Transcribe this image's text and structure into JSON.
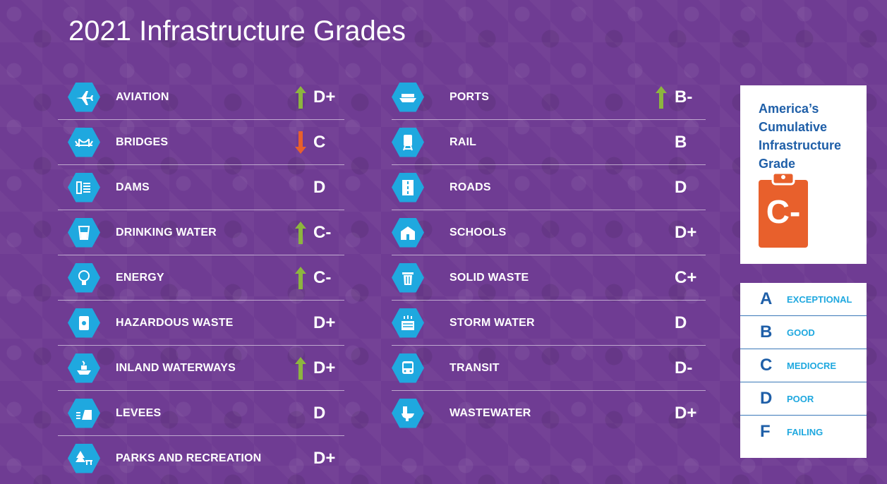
{
  "title": "2021 Infrastructure Grades",
  "colors": {
    "background": "#6f3c93",
    "hex_icon": "#1fa8df",
    "arrow_up": "#8db53f",
    "arrow_down": "#e8602c",
    "clipboard": "#e8602c",
    "heading_blue": "#1f5fa8"
  },
  "left_categories": [
    {
      "label": "AVIATION",
      "grade": "D+",
      "trend": "up",
      "icon": "airplane-icon"
    },
    {
      "label": "BRIDGES",
      "grade": "C",
      "trend": "down",
      "icon": "bridge-icon"
    },
    {
      "label": "DAMS",
      "grade": "D",
      "trend": "none",
      "icon": "dam-icon"
    },
    {
      "label": "DRINKING WATER",
      "grade": "C-",
      "trend": "up",
      "icon": "water-glass-icon"
    },
    {
      "label": "ENERGY",
      "grade": "C-",
      "trend": "up",
      "icon": "lightbulb-icon"
    },
    {
      "label": "HAZARDOUS WASTE",
      "grade": "D+",
      "trend": "none",
      "icon": "hazard-barrel-icon"
    },
    {
      "label": "INLAND WATERWAYS",
      "grade": "D+",
      "trend": "up",
      "icon": "boat-icon"
    },
    {
      "label": "LEVEES",
      "grade": "D",
      "trend": "none",
      "icon": "levee-icon"
    },
    {
      "label": "PARKS AND RECREATION",
      "grade": "D+",
      "trend": "none",
      "icon": "park-tree-icon"
    }
  ],
  "right_categories": [
    {
      "label": "PORTS",
      "grade": "B-",
      "trend": "up",
      "icon": "ship-icon"
    },
    {
      "label": "RAIL",
      "grade": "B",
      "trend": "none",
      "icon": "train-icon"
    },
    {
      "label": "ROADS",
      "grade": "D",
      "trend": "none",
      "icon": "road-icon"
    },
    {
      "label": "SCHOOLS",
      "grade": "D+",
      "trend": "none",
      "icon": "school-icon"
    },
    {
      "label": "SOLID WASTE",
      "grade": "C+",
      "trend": "none",
      "icon": "trash-can-icon"
    },
    {
      "label": "STORM WATER",
      "grade": "D",
      "trend": "none",
      "icon": "storm-drain-icon"
    },
    {
      "label": "TRANSIT",
      "grade": "D-",
      "trend": "none",
      "icon": "bus-icon"
    },
    {
      "label": "WASTEWATER",
      "grade": "D+",
      "trend": "none",
      "icon": "toilet-icon"
    }
  ],
  "cumulative": {
    "title": "America’s Cumulative Infrastructure Grade",
    "grade": "C-",
    "icon": "clipboard-icon"
  },
  "legend": [
    {
      "letter": "A",
      "description": "EXCEPTIONAL"
    },
    {
      "letter": "B",
      "description": "GOOD"
    },
    {
      "letter": "C",
      "description": "MEDIOCRE"
    },
    {
      "letter": "D",
      "description": "POOR"
    },
    {
      "letter": "F",
      "description": "FAILING"
    }
  ]
}
